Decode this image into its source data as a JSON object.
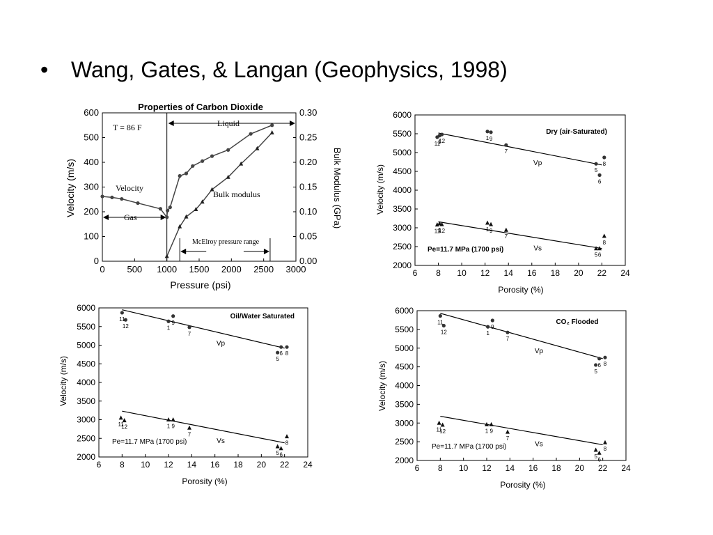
{
  "slide": {
    "bullet": "•",
    "title": "Wang, Gates, & Langan (Geophysics, 1998)"
  },
  "chart_data": [
    {
      "type": "line",
      "title": "Properties of Carbon Dioxide",
      "xlabel": "Pressure (psi)",
      "ylabel": "Velocity (m/s)",
      "y2label": "Bulk Modulus (GPa)",
      "xlim": [
        0,
        3000
      ],
      "ylim": [
        0,
        600
      ],
      "y2lim": [
        0,
        0.3
      ],
      "xticks": [
        "0",
        "500",
        "1000",
        "1500",
        "2000",
        "2500",
        "3000"
      ],
      "yticks": [
        "0",
        "100",
        "200",
        "300",
        "400",
        "500",
        "600"
      ],
      "y2ticks": [
        "0.00",
        "0.05",
        "0.10",
        "0.15",
        "0.20",
        "0.25",
        "0.30"
      ],
      "annotations": {
        "temperature": "T = 86 F",
        "liquid": "Liquid",
        "gas": "Gas",
        "velocity": "Velocity",
        "bulk_modulus": "Bulk modulus",
        "mcelroy": "McElroy pressure range"
      },
      "series": [
        {
          "name": "Velocity",
          "axis": "left",
          "x": [
            0,
            150,
            300,
            550,
            900,
            1000,
            1010,
            1050,
            1200,
            1300,
            1400,
            1550,
            1700,
            1950,
            2300,
            2630
          ],
          "y": [
            262,
            258,
            252,
            235,
            212,
            178,
            205,
            218,
            345,
            355,
            385,
            405,
            425,
            450,
            515,
            550
          ]
        },
        {
          "name": "Bulk modulus",
          "axis": "right",
          "x": [
            1000,
            1200,
            1300,
            1450,
            1550,
            1700,
            1950,
            2150,
            2400,
            2630
          ],
          "y": [
            0.01,
            0.07,
            0.09,
            0.105,
            0.12,
            0.145,
            0.17,
            0.197,
            0.228,
            0.26
          ]
        }
      ]
    },
    {
      "type": "scatter",
      "title": "Dry (air-Saturated)",
      "xlabel": "Porosity (%)",
      "ylabel": "Velocity (m/s)",
      "xlim": [
        6,
        24
      ],
      "ylim": [
        2000,
        6000
      ],
      "xticks": [
        "6",
        "8",
        "10",
        "12",
        "14",
        "16",
        "18",
        "20",
        "22",
        "24"
      ],
      "yticks": [
        "2000",
        "2500",
        "3000",
        "3500",
        "4000",
        "4500",
        "5000",
        "5500",
        "6000"
      ],
      "pressure_label": "Pe=11.7 MPa (1700 psi)",
      "series": [
        {
          "name": "Vp",
          "marker": "circle",
          "points": [
            {
              "x": 7.9,
              "y": 5410,
              "label": "11"
            },
            {
              "x": 8.1,
              "y": 5450,
              "label": "1"
            },
            {
              "x": 8.3,
              "y": 5480,
              "label": "12"
            },
            {
              "x": 12.2,
              "y": 5560,
              "label": "1"
            },
            {
              "x": 12.5,
              "y": 5540,
              "label": "9"
            },
            {
              "x": 13.8,
              "y": 5200,
              "label": "7"
            },
            {
              "x": 21.5,
              "y": 4700,
              "label": "5"
            },
            {
              "x": 21.8,
              "y": 4400,
              "label": "6"
            },
            {
              "x": 22.2,
              "y": 4870,
              "label": "8"
            }
          ],
          "fit": [
            [
              8,
              5520
            ],
            [
              22,
              4670
            ]
          ]
        },
        {
          "name": "Vs",
          "marker": "triangle",
          "points": [
            {
              "x": 7.9,
              "y": 3080,
              "label": "11"
            },
            {
              "x": 8.1,
              "y": 3110,
              "label": "1"
            },
            {
              "x": 8.3,
              "y": 3090,
              "label": "12"
            },
            {
              "x": 12.2,
              "y": 3130,
              "label": "1"
            },
            {
              "x": 12.5,
              "y": 3090,
              "label": "9"
            },
            {
              "x": 13.8,
              "y": 2940,
              "label": "7"
            },
            {
              "x": 21.5,
              "y": 2450,
              "label": "5"
            },
            {
              "x": 21.8,
              "y": 2450,
              "label": "6"
            },
            {
              "x": 22.2,
              "y": 2780,
              "label": "8"
            }
          ],
          "fit": [
            [
              8,
              3160
            ],
            [
              22,
              2450
            ]
          ]
        }
      ]
    },
    {
      "type": "scatter",
      "title": "Oil/Water Saturated",
      "xlabel": "Porosity (%)",
      "ylabel": "Velocity (m/s)",
      "xlim": [
        6,
        24
      ],
      "ylim": [
        2000,
        6000
      ],
      "xticks": [
        "6",
        "8",
        "10",
        "12",
        "14",
        "16",
        "18",
        "20",
        "22",
        "24"
      ],
      "yticks": [
        "2000",
        "2500",
        "3000",
        "3500",
        "4000",
        "4500",
        "5000",
        "5500",
        "6000"
      ],
      "pressure_label": "Pe=11.7 MPa (1700 psi)",
      "series": [
        {
          "name": "Vp",
          "marker": "circle",
          "points": [
            {
              "x": 8.0,
              "y": 5870,
              "label": "11"
            },
            {
              "x": 8.3,
              "y": 5680,
              "label": "12"
            },
            {
              "x": 12.0,
              "y": 5640,
              "label": "1"
            },
            {
              "x": 12.4,
              "y": 5780,
              "label": "9"
            },
            {
              "x": 13.8,
              "y": 5480,
              "label": "7"
            },
            {
              "x": 21.4,
              "y": 4800,
              "label": "5"
            },
            {
              "x": 21.7,
              "y": 4950,
              "label": "6"
            },
            {
              "x": 22.2,
              "y": 4950,
              "label": "8"
            }
          ],
          "fit": [
            [
              8,
              5950
            ],
            [
              22,
              4920
            ]
          ]
        },
        {
          "name": "Vs",
          "marker": "triangle",
          "points": [
            {
              "x": 7.9,
              "y": 3050,
              "label": "11"
            },
            {
              "x": 8.2,
              "y": 2980,
              "label": "12"
            },
            {
              "x": 12.0,
              "y": 3000,
              "label": "1"
            },
            {
              "x": 12.4,
              "y": 3000,
              "label": "9"
            },
            {
              "x": 13.8,
              "y": 2780,
              "label": "7"
            },
            {
              "x": 21.4,
              "y": 2280,
              "label": "5"
            },
            {
              "x": 21.7,
              "y": 2230,
              "label": "6"
            },
            {
              "x": 22.2,
              "y": 2550,
              "label": "8"
            }
          ],
          "fit": [
            [
              8,
              3230
            ],
            [
              22,
              2380
            ]
          ]
        }
      ]
    },
    {
      "type": "scatter",
      "title": "CO₂ Flooded",
      "xlabel": "Porosity (%)",
      "ylabel": "Velocity (m/s)",
      "xlim": [
        6,
        24
      ],
      "ylim": [
        2000,
        6000
      ],
      "xticks": [
        "6",
        "8",
        "10",
        "12",
        "14",
        "16",
        "18",
        "20",
        "22",
        "24"
      ],
      "yticks": [
        "2000",
        "2500",
        "3000",
        "3500",
        "4000",
        "4500",
        "5000",
        "5500",
        "6000"
      ],
      "pressure_label": "Pe=11.7 MPa (1700 psi)",
      "series": [
        {
          "name": "Vp",
          "marker": "circle",
          "points": [
            {
              "x": 8.0,
              "y": 5860,
              "label": "11"
            },
            {
              "x": 8.3,
              "y": 5600,
              "label": "12"
            },
            {
              "x": 12.1,
              "y": 5570,
              "label": "1"
            },
            {
              "x": 12.5,
              "y": 5740,
              "label": "9"
            },
            {
              "x": 13.8,
              "y": 5420,
              "label": "7"
            },
            {
              "x": 21.4,
              "y": 4550,
              "label": "5"
            },
            {
              "x": 21.7,
              "y": 4720,
              "label": "6"
            },
            {
              "x": 22.2,
              "y": 4750,
              "label": "8"
            }
          ],
          "fit": [
            [
              8,
              5930
            ],
            [
              22,
              4720
            ]
          ]
        },
        {
          "name": "Vs",
          "marker": "triangle",
          "points": [
            {
              "x": 7.9,
              "y": 3000,
              "label": "11"
            },
            {
              "x": 8.2,
              "y": 2950,
              "label": "12"
            },
            {
              "x": 12.0,
              "y": 2960,
              "label": "1"
            },
            {
              "x": 12.4,
              "y": 2960,
              "label": "9"
            },
            {
              "x": 13.8,
              "y": 2760,
              "label": "7"
            },
            {
              "x": 21.4,
              "y": 2280,
              "label": "5"
            },
            {
              "x": 21.7,
              "y": 2200,
              "label": "6"
            },
            {
              "x": 22.2,
              "y": 2480,
              "label": "8"
            }
          ],
          "fit": [
            [
              8,
              3180
            ],
            [
              22,
              2420
            ]
          ]
        }
      ]
    }
  ]
}
